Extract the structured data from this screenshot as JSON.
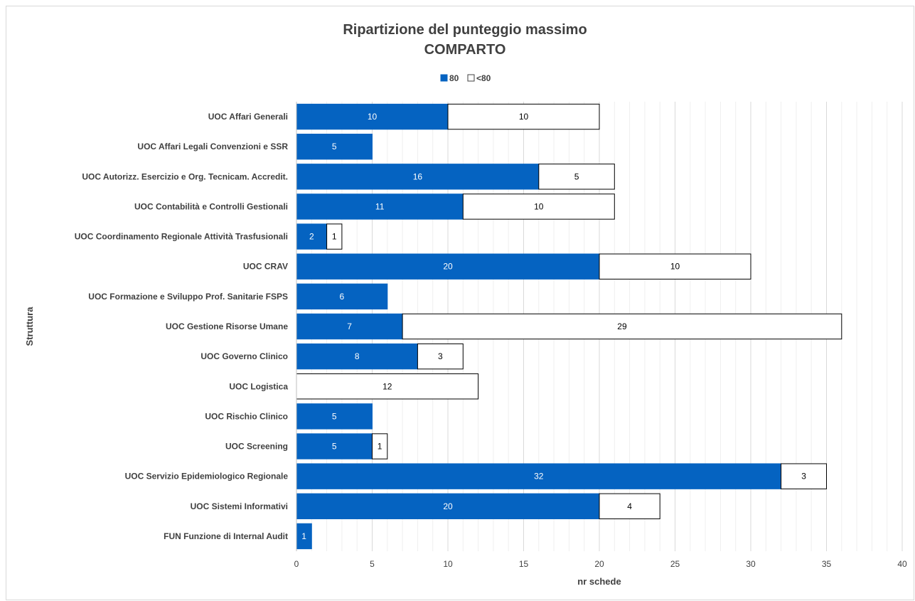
{
  "chart_data": {
    "type": "bar",
    "orientation": "horizontal",
    "stacked": true,
    "title": [
      "Ripartizione del punteggio massimo",
      "COMPARTO"
    ],
    "xlabel": "nr schede",
    "ylabel": "Struttura",
    "xlim": [
      0,
      40
    ],
    "x_ticks": [
      "0",
      "5",
      "10",
      "15",
      "20",
      "25",
      "30",
      "35",
      "40"
    ],
    "grid": true,
    "legend_position": "top",
    "categories": [
      "UOC Affari Generali",
      "UOC Affari Legali Convenzioni e SSR",
      "UOC Autorizz. Esercizio e Org. Tecnicam. Accredit.",
      "UOC Contabilità e Controlli Gestionali",
      "UOC Coordinamento Regionale Attività Trasfusionali",
      "UOC CRAV",
      "UOC Formazione e Sviluppo Prof. Sanitarie FSPS",
      "UOC Gestione Risorse Umane",
      "UOC Governo Clinico",
      "UOC Logistica",
      "UOC Rischio Clinico",
      "UOC Screening",
      "UOC Servizio Epidemiologico Regionale",
      "UOC Sistemi Informativi",
      "FUN Funzione di Internal Audit"
    ],
    "series": [
      {
        "name": "80",
        "color": "#0563c1",
        "values": [
          10,
          5,
          16,
          11,
          2,
          20,
          6,
          7,
          8,
          0,
          5,
          5,
          32,
          20,
          1
        ]
      },
      {
        "name": "<80",
        "color": "#ffffff",
        "values": [
          10,
          0,
          5,
          10,
          1,
          10,
          0,
          29,
          3,
          12,
          0,
          1,
          3,
          4,
          0
        ]
      }
    ]
  }
}
